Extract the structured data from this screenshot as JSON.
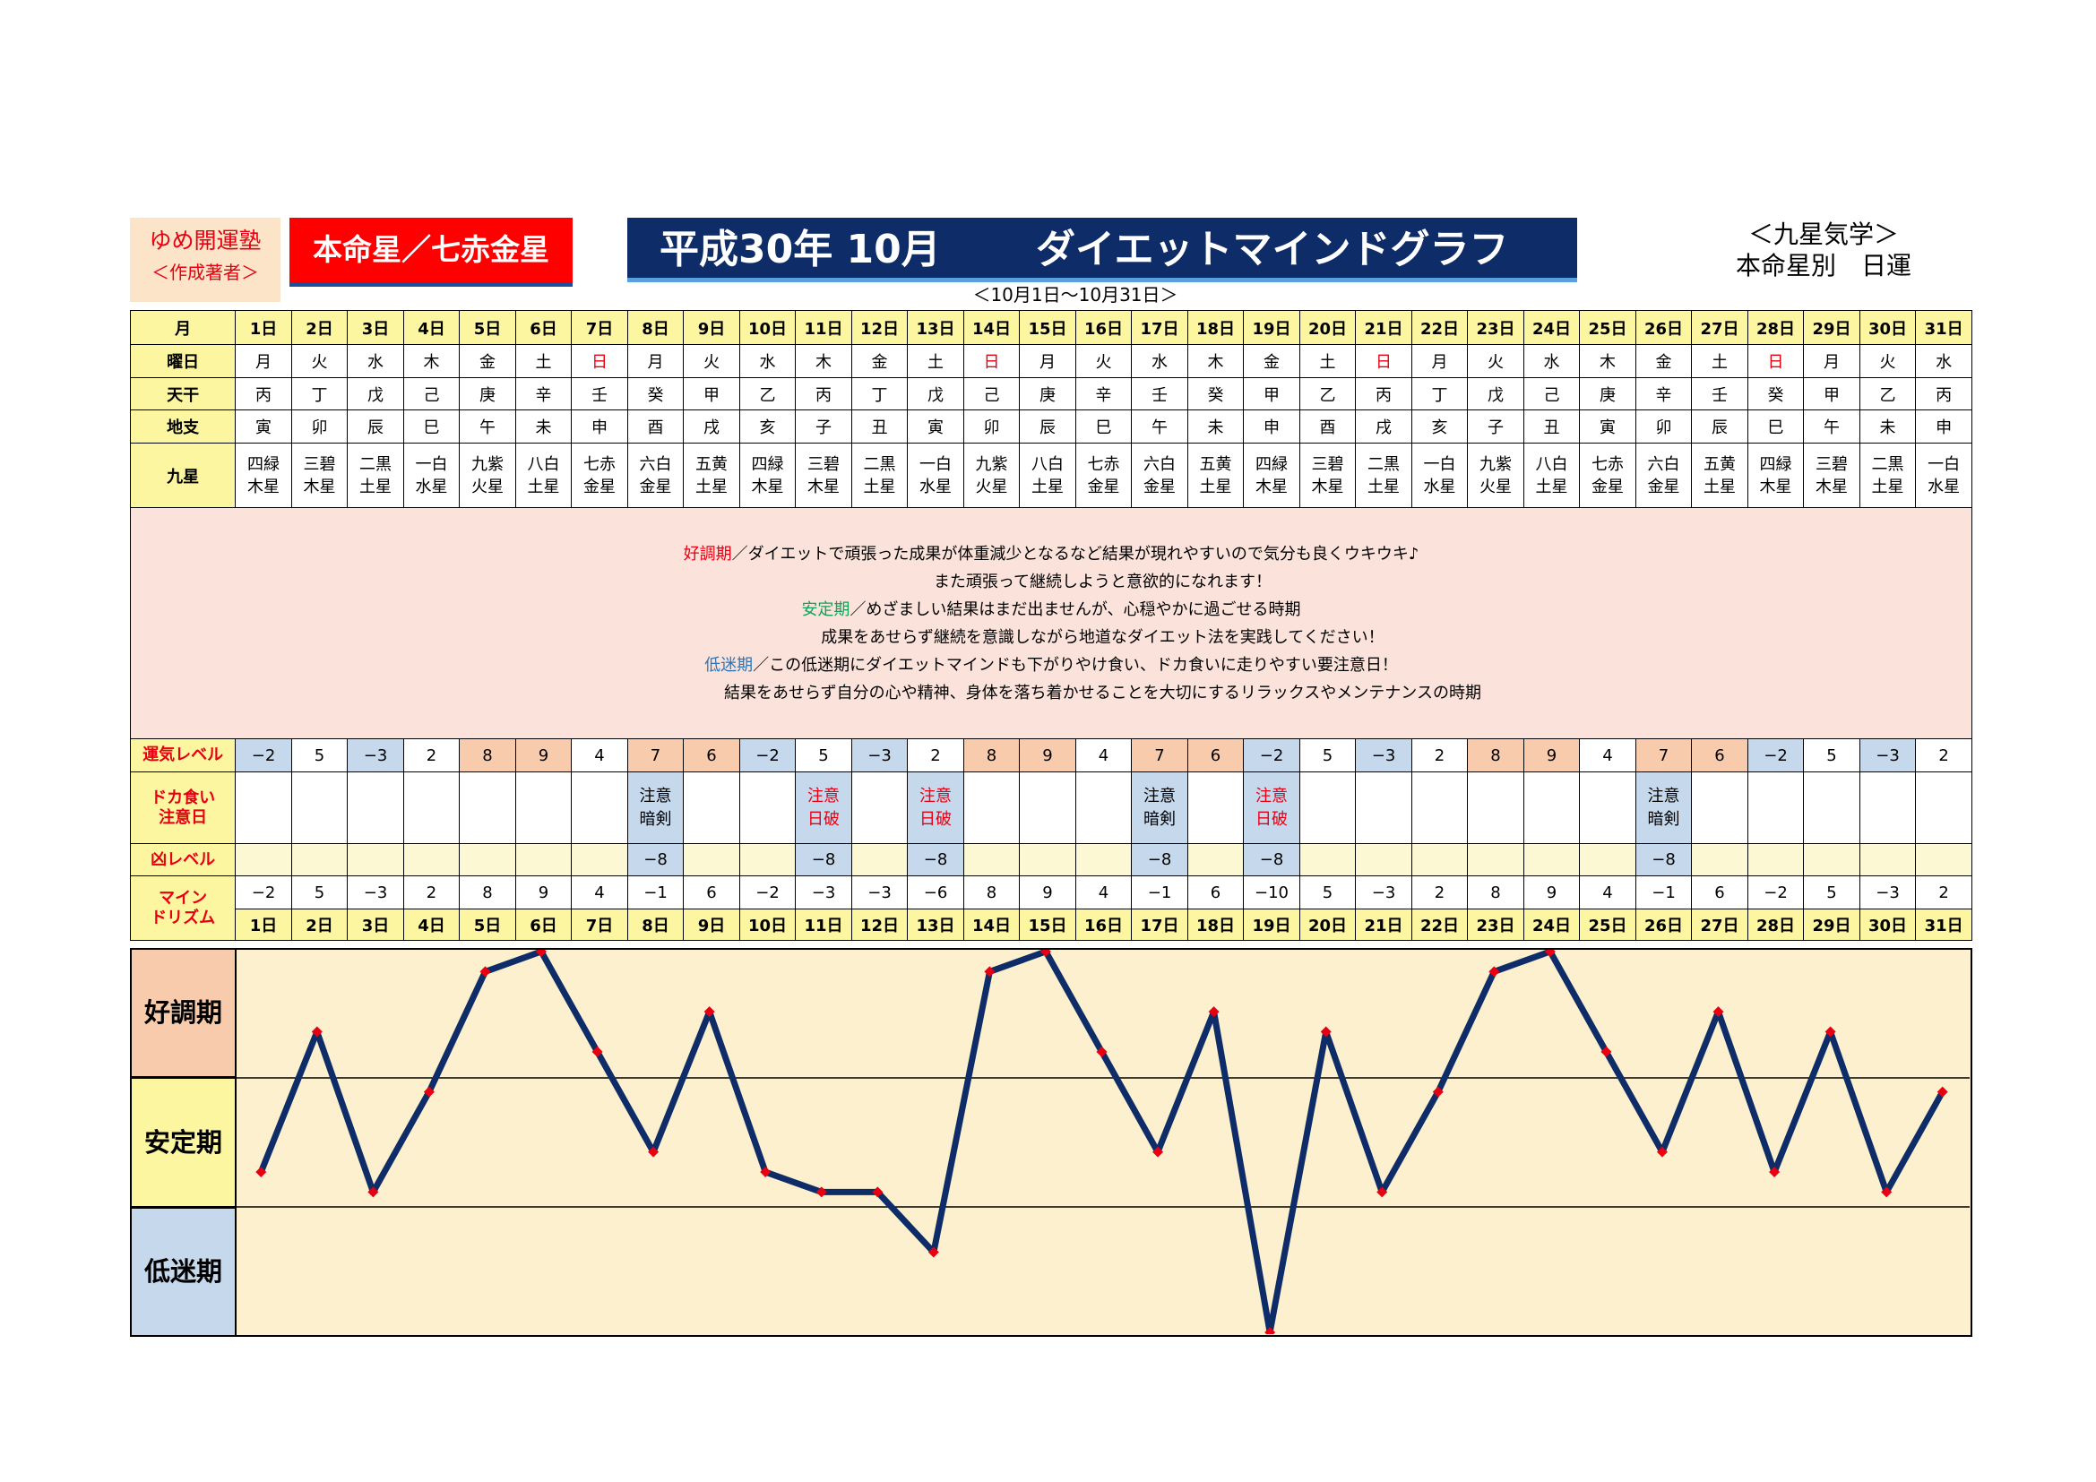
{
  "header": {
    "brand_name": "ゆめ開運塾",
    "brand_sub": "＜作成著者＞",
    "honmeisei": "本命星／七赤金星",
    "title_date": "平成30年 10月",
    "title_main": "ダイエットマインドグラフ",
    "date_range": "＜10月1日～10月31日＞",
    "corner_line1": "＜九星気学＞",
    "corner_line2": "本命星別　日運"
  },
  "row_labels": {
    "month": "月",
    "weekday": "曜日",
    "tenkan": "天干",
    "chishi": "地支",
    "kyusei": "九星",
    "unki": "運気レベル",
    "dokagui": "ドカ食い注意日",
    "kyo": "凶レベル",
    "mind": "マインドリズム"
  },
  "days": [
    "1日",
    "2日",
    "3日",
    "4日",
    "5日",
    "6日",
    "7日",
    "8日",
    "9日",
    "10日",
    "11日",
    "12日",
    "13日",
    "14日",
    "15日",
    "16日",
    "17日",
    "18日",
    "19日",
    "20日",
    "21日",
    "22日",
    "23日",
    "24日",
    "25日",
    "26日",
    "27日",
    "28日",
    "29日",
    "30日",
    "31日"
  ],
  "weekdays": [
    "月",
    "火",
    "水",
    "木",
    "金",
    "土",
    "日",
    "月",
    "火",
    "水",
    "木",
    "金",
    "土",
    "日",
    "月",
    "火",
    "水",
    "木",
    "金",
    "土",
    "日",
    "月",
    "火",
    "水",
    "木",
    "金",
    "土",
    "日",
    "月",
    "火",
    "水"
  ],
  "tenkan": [
    "丙",
    "丁",
    "戊",
    "己",
    "庚",
    "辛",
    "壬",
    "癸",
    "甲",
    "乙",
    "丙",
    "丁",
    "戊",
    "己",
    "庚",
    "辛",
    "壬",
    "癸",
    "甲",
    "乙",
    "丙",
    "丁",
    "戊",
    "己",
    "庚",
    "辛",
    "壬",
    "癸",
    "甲",
    "乙",
    "丙"
  ],
  "chishi": [
    "寅",
    "卯",
    "辰",
    "巳",
    "午",
    "未",
    "申",
    "酉",
    "戌",
    "亥",
    "子",
    "丑",
    "寅",
    "卯",
    "辰",
    "巳",
    "午",
    "未",
    "申",
    "酉",
    "戌",
    "亥",
    "子",
    "丑",
    "寅",
    "卯",
    "辰",
    "巳",
    "午",
    "未",
    "申"
  ],
  "kyusei_top": [
    "四緑",
    "三碧",
    "二黒",
    "一白",
    "九紫",
    "八白",
    "七赤",
    "六白",
    "五黄",
    "四緑",
    "三碧",
    "二黒",
    "一白",
    "九紫",
    "八白",
    "七赤",
    "六白",
    "五黄",
    "四緑",
    "三碧",
    "二黒",
    "一白",
    "九紫",
    "八白",
    "七赤",
    "六白",
    "五黄",
    "四緑",
    "三碧",
    "二黒",
    "一白"
  ],
  "kyusei_bottom": [
    "木星",
    "木星",
    "土星",
    "水星",
    "火星",
    "土星",
    "金星",
    "金星",
    "土星",
    "木星",
    "木星",
    "土星",
    "水星",
    "火星",
    "土星",
    "金星",
    "金星",
    "土星",
    "木星",
    "木星",
    "土星",
    "水星",
    "火星",
    "土星",
    "金星",
    "金星",
    "土星",
    "木星",
    "木星",
    "土星",
    "水星"
  ],
  "unki_level": [
    "−2",
    "5",
    "−3",
    "2",
    "8",
    "9",
    "4",
    "7",
    "6",
    "−2",
    "5",
    "−3",
    "2",
    "8",
    "9",
    "4",
    "7",
    "6",
    "−2",
    "5",
    "−3",
    "2",
    "8",
    "9",
    "4",
    "7",
    "6",
    "−2",
    "5",
    "−3",
    "2"
  ],
  "dokagui": [
    "",
    "",
    "",
    "",
    "",
    "",
    "",
    "注意\n暗剣",
    "",
    "",
    "注意\n日破",
    "",
    "注意\n日破",
    "",
    "",
    "",
    "注意\n暗剣",
    "",
    "注意\n日破",
    "",
    "",
    "",
    "",
    "",
    "",
    "注意\n暗剣",
    "",
    "",
    "",
    "",
    ""
  ],
  "kyo_level": [
    "",
    "",
    "",
    "",
    "",
    "",
    "",
    "−8",
    "",
    "",
    "−8",
    "",
    "−8",
    "",
    "",
    "",
    "−8",
    "",
    "−8",
    "",
    "",
    "",
    "",
    "",
    "",
    "−8",
    "",
    "",
    "",
    "",
    ""
  ],
  "mind_rhythm": [
    "−2",
    "5",
    "−3",
    "2",
    "8",
    "9",
    "4",
    "−1",
    "6",
    "−2",
    "−3",
    "−3",
    "−6",
    "8",
    "9",
    "4",
    "−1",
    "6",
    "−10",
    "5",
    "−3",
    "2",
    "8",
    "9",
    "4",
    "−1",
    "6",
    "−2",
    "5",
    "−3",
    "2"
  ],
  "explanation": {
    "good_label": "好調期",
    "good_text": "／ダイエットで頑張った成果が体重減少となるなど結果が現れやすいので気分も良くウキウキ♪",
    "good_text2": "また頑張って継続しようと意欲的になれます！",
    "stable_label": "安定期",
    "stable_text": "／めざましい結果はまだ出ませんが、心穏やかに過ごせる時期",
    "stable_text2": "成果をあせらず継続を意識しながら地道なダイエット法を実践してください！",
    "low_label": "低迷期",
    "low_text": "／この低迷期にダイエットマインドも下がりやけ食い、ドカ食いに走りやすい要注意日！",
    "low_text2": "結果をあせらず自分の心や精神、身体を落ち着かせることを大切にするリラックスやメンテナンスの時期"
  },
  "bands": {
    "good": "好調期",
    "stable": "安定期",
    "low": "低迷期"
  },
  "colors": {
    "title_bg": "#0e2c67",
    "star_bg": "#ff0000",
    "header_yellow": "#fcf6a0",
    "explain_bg": "#fbe3dc",
    "good_band": "#f8cbad",
    "stable_band": "#fcf6a0",
    "low_band": "#c5d8ec",
    "chart_bg": "#fdf0cf",
    "line": "#0e2c67",
    "marker": "#e60012"
  },
  "chart_data": {
    "type": "line",
    "x": [
      "1日",
      "2日",
      "3日",
      "4日",
      "5日",
      "6日",
      "7日",
      "8日",
      "9日",
      "10日",
      "11日",
      "12日",
      "13日",
      "14日",
      "15日",
      "16日",
      "17日",
      "18日",
      "19日",
      "20日",
      "21日",
      "22日",
      "23日",
      "24日",
      "25日",
      "26日",
      "27日",
      "28日",
      "29日",
      "30日",
      "31日"
    ],
    "series": [
      {
        "values": [
          -2,
          5,
          -3,
          2,
          8,
          9,
          4,
          -1,
          6,
          -2,
          -3,
          -3,
          -6,
          8,
          9,
          4,
          -1,
          6,
          -10,
          5,
          -3,
          2,
          8,
          9,
          4,
          -1,
          6,
          -2,
          5,
          -3,
          2
        ]
      }
    ],
    "ylim": [
      -10,
      9
    ],
    "bands": [
      "好調期",
      "安定期",
      "低迷期"
    ]
  }
}
